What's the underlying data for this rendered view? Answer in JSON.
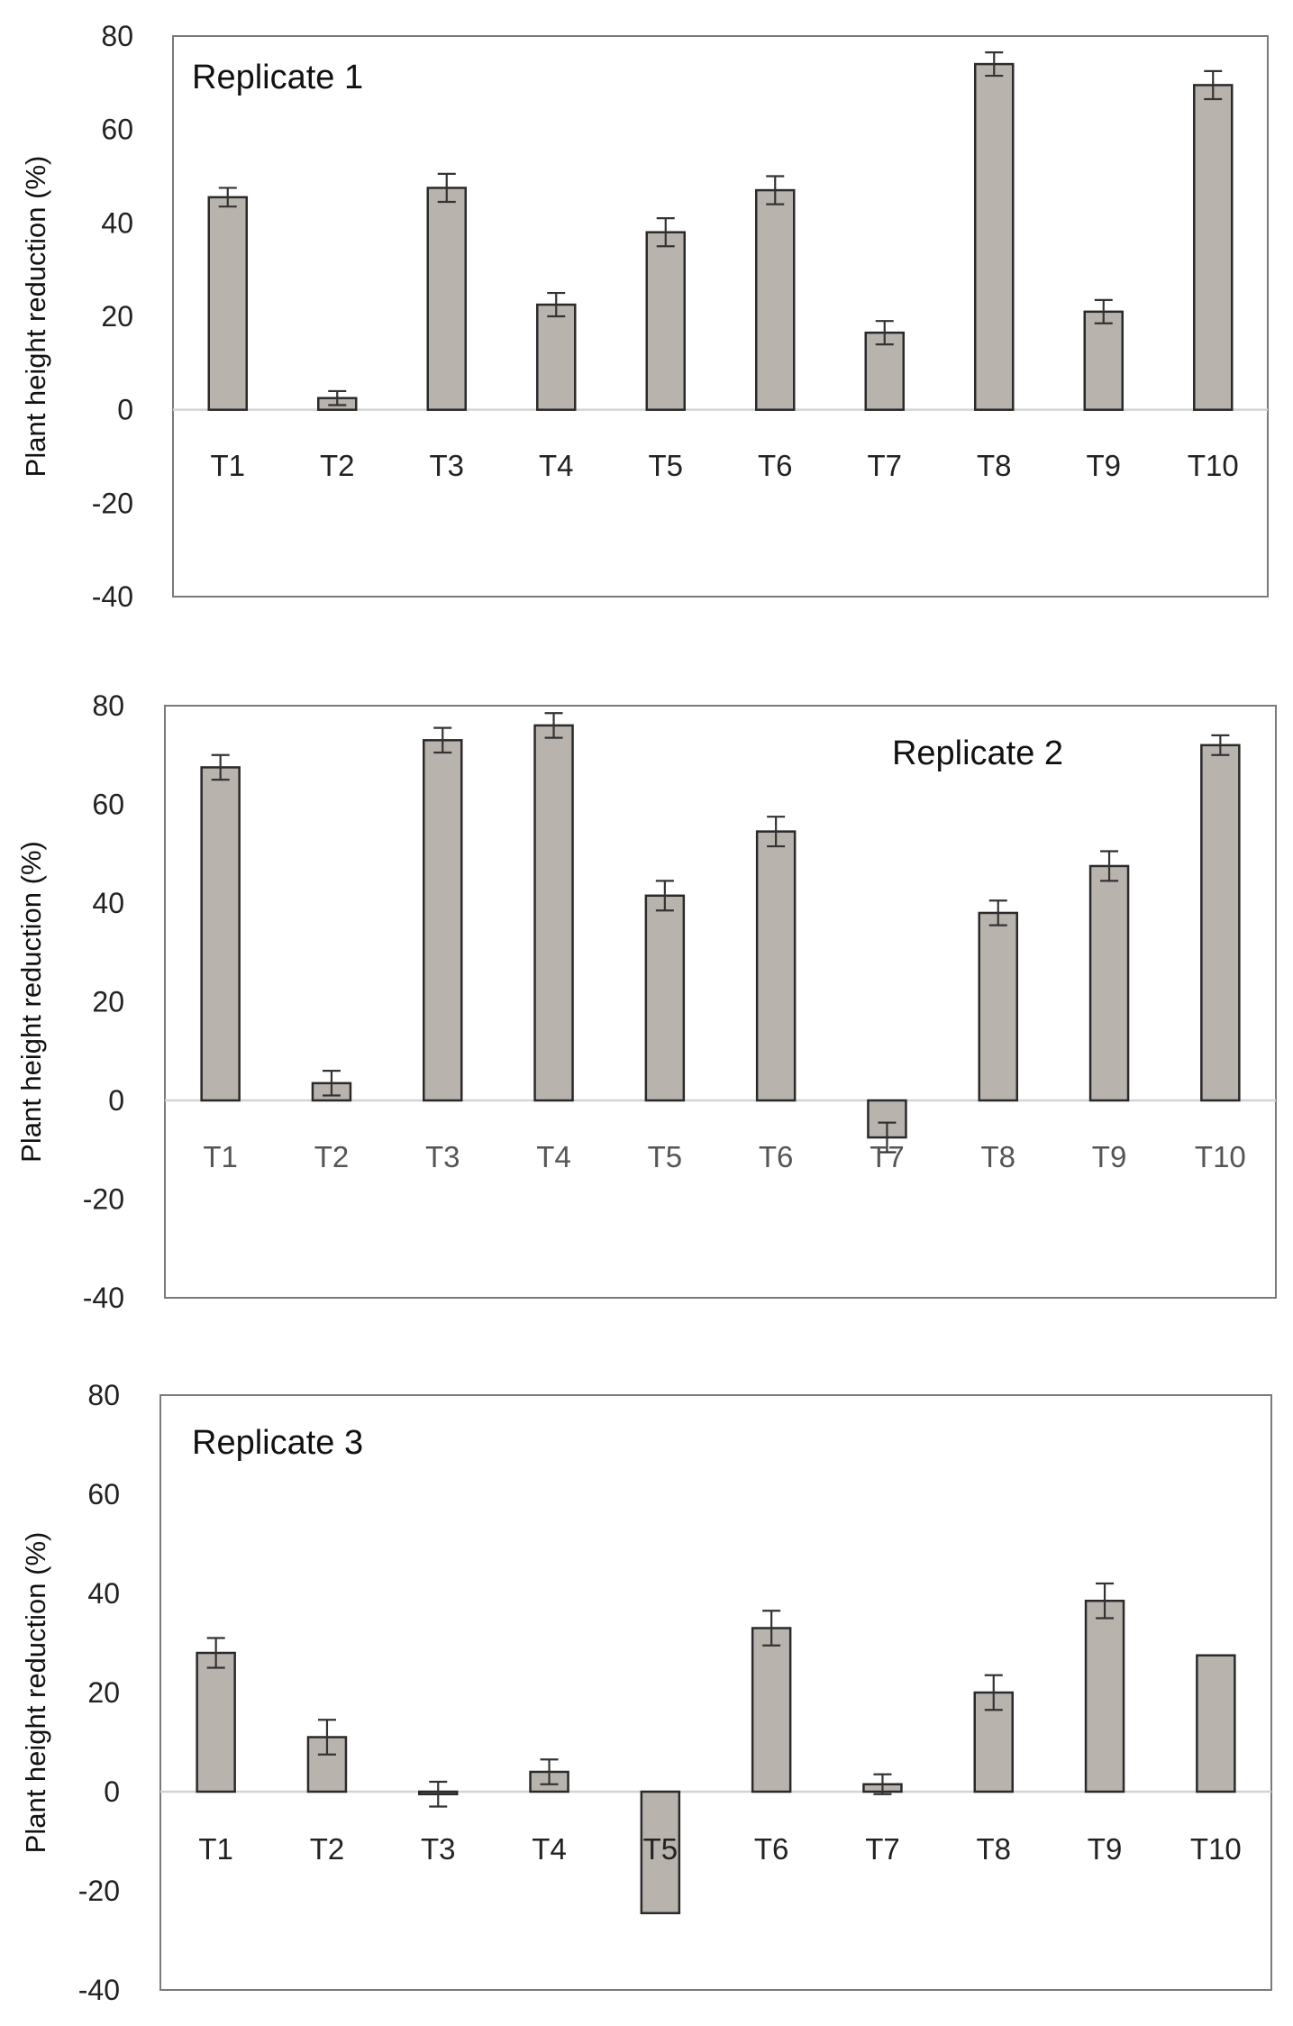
{
  "chart_data": [
    {
      "type": "bar",
      "title": "Replicate 1",
      "legend_position": "top-left",
      "ylabel": "Plant height reduction (%)",
      "xlabel": "",
      "ylim": [
        -40,
        80
      ],
      "yticks": [
        80,
        60,
        40,
        20,
        0,
        -20,
        -40
      ],
      "categories": [
        "T1",
        "T2",
        "T3",
        "T4",
        "T5",
        "T6",
        "T7",
        "T8",
        "T9",
        "T10"
      ],
      "values": [
        45.5,
        2.5,
        47.5,
        22.5,
        38,
        47,
        16.5,
        74,
        21,
        69.5
      ],
      "errors": [
        2,
        1.5,
        3,
        2.5,
        3,
        3,
        2.5,
        2.5,
        2.5,
        3
      ]
    },
    {
      "type": "bar",
      "title": "Replicate 2",
      "legend_position": "top-right",
      "ylabel": "Plant height reduction (%)",
      "xlabel": "",
      "ylim": [
        -40,
        80
      ],
      "yticks": [
        80,
        60,
        40,
        20,
        0,
        -20,
        -40
      ],
      "categories": [
        "T1",
        "T2",
        "T3",
        "T4",
        "T5",
        "T6",
        "T7",
        "T8",
        "T9",
        "T10"
      ],
      "values": [
        67.5,
        3.5,
        73,
        76,
        41.5,
        54.5,
        -7.5,
        38,
        47.5,
        72
      ],
      "errors": [
        2.5,
        2.5,
        2.5,
        2.5,
        3,
        3,
        3,
        2.5,
        3,
        2
      ]
    },
    {
      "type": "bar",
      "title": "Replicate 3",
      "legend_position": "top-left",
      "ylabel": "Plant height reduction (%)",
      "xlabel": "",
      "ylim": [
        -40,
        80
      ],
      "yticks": [
        80,
        60,
        40,
        20,
        0,
        -20,
        -40
      ],
      "categories": [
        "T1",
        "T2",
        "T3",
        "T4",
        "T5",
        "T6",
        "T7",
        "T8",
        "T9",
        "T10"
      ],
      "values": [
        28,
        11,
        -0.5,
        4,
        -24.5,
        33,
        1.5,
        20,
        38.5,
        27.5
      ],
      "errors": [
        3,
        3.5,
        2.5,
        2.5,
        0,
        3.5,
        2,
        3.5,
        3.5,
        0
      ]
    }
  ],
  "colors": {
    "bar_fill": "#b9b3ae",
    "bar_stroke": "#2a2a2a",
    "axis": "#333333",
    "zero_line": "#d4d4d4",
    "text": "#111111",
    "tick_text": "#222222"
  }
}
